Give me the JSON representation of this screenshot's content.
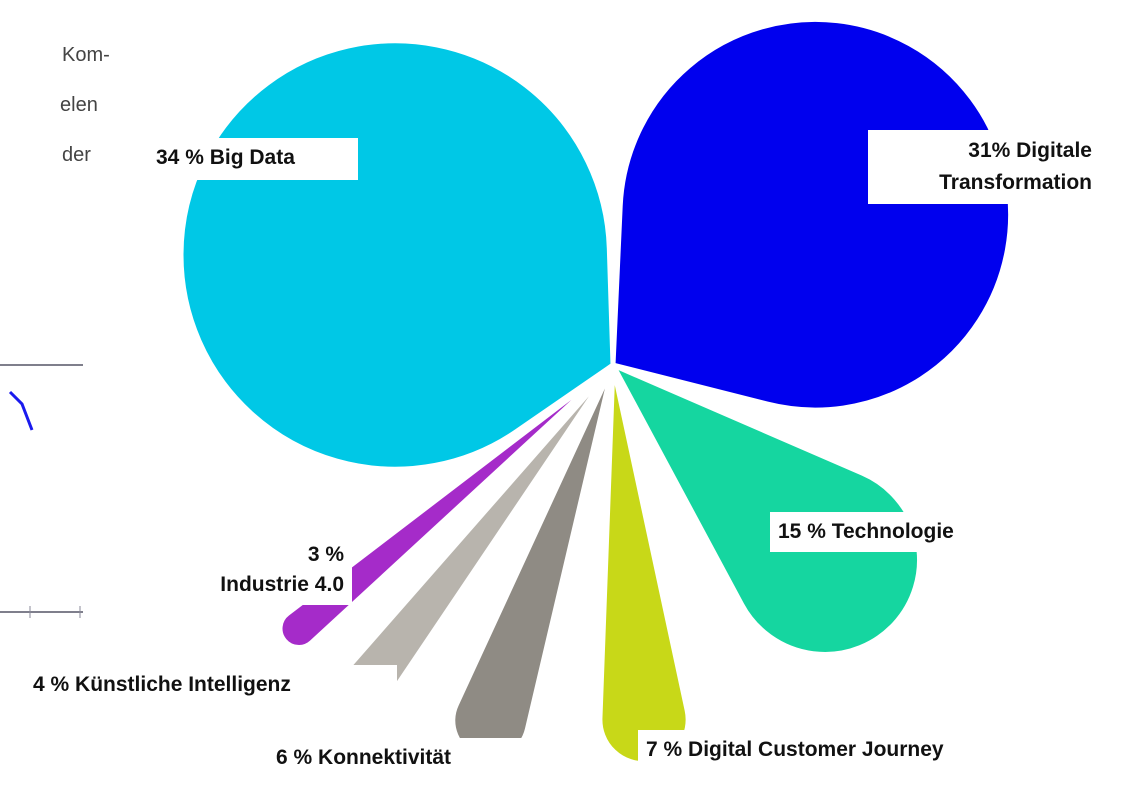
{
  "fragments": [
    "Kom-",
    "elen",
    "der"
  ],
  "chart_data": {
    "type": "pie",
    "categories": [
      "Big Data",
      "Digitale Transformation",
      "Technologie",
      "Digital Customer Journey",
      "Konnektivität",
      "Künstliche Intelligenz",
      "Industrie 4.0"
    ],
    "values": [
      34,
      31,
      15,
      7,
      6,
      4,
      3
    ],
    "value_labels": [
      "34 %",
      "31%",
      "15 %",
      "7 %",
      "6 %",
      "4 %",
      "3 %"
    ],
    "colors": [
      "#00c8e6",
      "#0000ee",
      "#15d6a0",
      "#c8d818",
      "#8f8b84",
      "#b8b4ad",
      "#a52bc9"
    ]
  }
}
